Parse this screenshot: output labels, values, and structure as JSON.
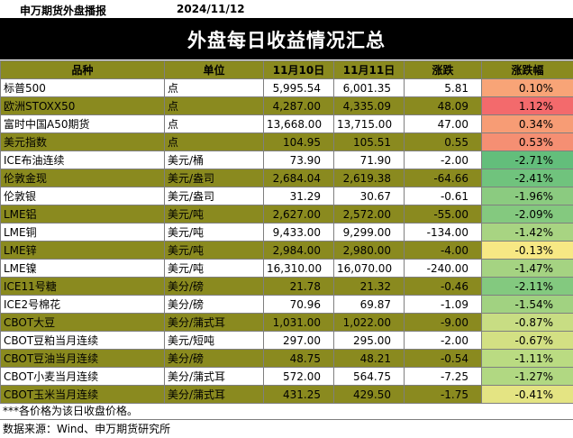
{
  "header": {
    "source": "申万期货外盘播报",
    "date": "2024/11/12"
  },
  "title": "外盘每日收益情况汇总",
  "columns": [
    "品种",
    "单位",
    "11月10日",
    "11月11日",
    "涨跌",
    "涨跌幅"
  ],
  "rows": [
    {
      "name": "标普500",
      "unit": "点",
      "d1": "5,995.54",
      "d2": "6,001.35",
      "chg": "5.81",
      "pct": "0.10%",
      "pct_color": "#f8a477"
    },
    {
      "name": "欧洲STOXX50",
      "unit": "点",
      "d1": "4,287.00",
      "d2": "4,335.09",
      "chg": "48.09",
      "pct": "1.12%",
      "pct_color": "#f36a6c"
    },
    {
      "name": "富时中国A50期货",
      "unit": "点",
      "d1": "13,668.00",
      "d2": "13,715.00",
      "chg": "47.00",
      "pct": "0.34%",
      "pct_color": "#f79c75"
    },
    {
      "name": "美元指数",
      "unit": "点",
      "d1": "104.95",
      "d2": "105.51",
      "chg": "0.55",
      "pct": "0.53%",
      "pct_color": "#f58f73"
    },
    {
      "name": "ICE布油连续",
      "unit": "美元/桶",
      "d1": "73.90",
      "d2": "71.90",
      "chg": "-2.00",
      "pct": "-2.71%",
      "pct_color": "#63be7b"
    },
    {
      "name": "伦敦金现",
      "unit": "美元/盎司",
      "d1": "2,684.04",
      "d2": "2,619.38",
      "chg": "-64.66",
      "pct": "-2.41%",
      "pct_color": "#70c37d"
    },
    {
      "name": "伦敦银",
      "unit": "美元/盎司",
      "d1": "31.29",
      "d2": "30.67",
      "chg": "-0.61",
      "pct": "-1.96%",
      "pct_color": "#8bcb80"
    },
    {
      "name": "LME铝",
      "unit": "美元/吨",
      "d1": "2,627.00",
      "d2": "2,572.00",
      "chg": "-55.00",
      "pct": "-2.09%",
      "pct_color": "#84c97f"
    },
    {
      "name": "LME铜",
      "unit": "美元/吨",
      "d1": "9,433.00",
      "d2": "9,299.00",
      "chg": "-134.00",
      "pct": "-1.42%",
      "pct_color": "#a8d482"
    },
    {
      "name": "LME锌",
      "unit": "美元/吨",
      "d1": "2,984.00",
      "d2": "2,980.00",
      "chg": "-4.00",
      "pct": "-0.13%",
      "pct_color": "#f7e884"
    },
    {
      "name": "LME镍",
      "unit": "美元/吨",
      "d1": "16,310.00",
      "d2": "16,070.00",
      "chg": "-240.00",
      "pct": "-1.47%",
      "pct_color": "#a5d382"
    },
    {
      "name": "ICE11号糖",
      "unit": "美分/磅",
      "d1": "21.78",
      "d2": "21.32",
      "chg": "-0.46",
      "pct": "-2.11%",
      "pct_color": "#83c97f"
    },
    {
      "name": "ICE2号棉花",
      "unit": "美分/磅",
      "d1": "70.96",
      "d2": "69.87",
      "chg": "-1.09",
      "pct": "-1.54%",
      "pct_color": "#a1d281"
    },
    {
      "name": "CBOT大豆",
      "unit": "美分/蒲式耳",
      "d1": "1,031.00",
      "d2": "1,022.00",
      "chg": "-9.00",
      "pct": "-0.87%",
      "pct_color": "#c8dd83"
    },
    {
      "name": "CBOT豆粕当月连续",
      "unit": "美元/短吨",
      "d1": "297.00",
      "d2": "295.00",
      "chg": "-2.00",
      "pct": "-0.67%",
      "pct_color": "#d3e083"
    },
    {
      "name": "CBOT豆油当月连续",
      "unit": "美分/磅",
      "d1": "48.75",
      "d2": "48.21",
      "chg": "-0.54",
      "pct": "-1.11%",
      "pct_color": "#badb82"
    },
    {
      "name": "CBOT小麦当月连续",
      "unit": "美分/蒲式耳",
      "d1": "572.00",
      "d2": "564.75",
      "chg": "-7.25",
      "pct": "-1.27%",
      "pct_color": "#b1d882"
    },
    {
      "name": "CBOT玉米当月连续",
      "unit": "美分/蒲式耳",
      "d1": "431.25",
      "d2": "429.50",
      "chg": "-1.75",
      "pct": "-0.41%",
      "pct_color": "#e4e483"
    }
  ],
  "footnote": "***各价格为该日收盘价格。",
  "source_note": "数据来源：Wind、申万期货研究所"
}
